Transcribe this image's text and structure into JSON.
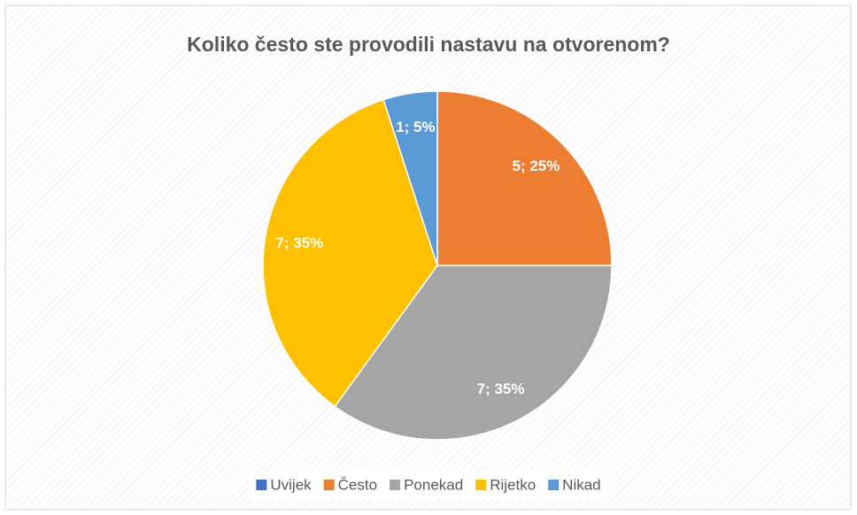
{
  "chart_data": {
    "type": "pie",
    "title": "Koliko često ste provodili nastavu na otvorenom?",
    "categories": [
      "Uvijek",
      "Često",
      "Ponekad",
      "Rijetko",
      "Nikad"
    ],
    "values": [
      0,
      5,
      7,
      7,
      1
    ],
    "value_labels": [
      null,
      "5; 25%",
      "7; 35%",
      "7; 35%",
      "1; 5%"
    ],
    "colors": [
      "#4472c4",
      "#ed7d31",
      "#a5a5a5",
      "#ffc000",
      "#5b9bd5"
    ],
    "legend": "bottom"
  }
}
